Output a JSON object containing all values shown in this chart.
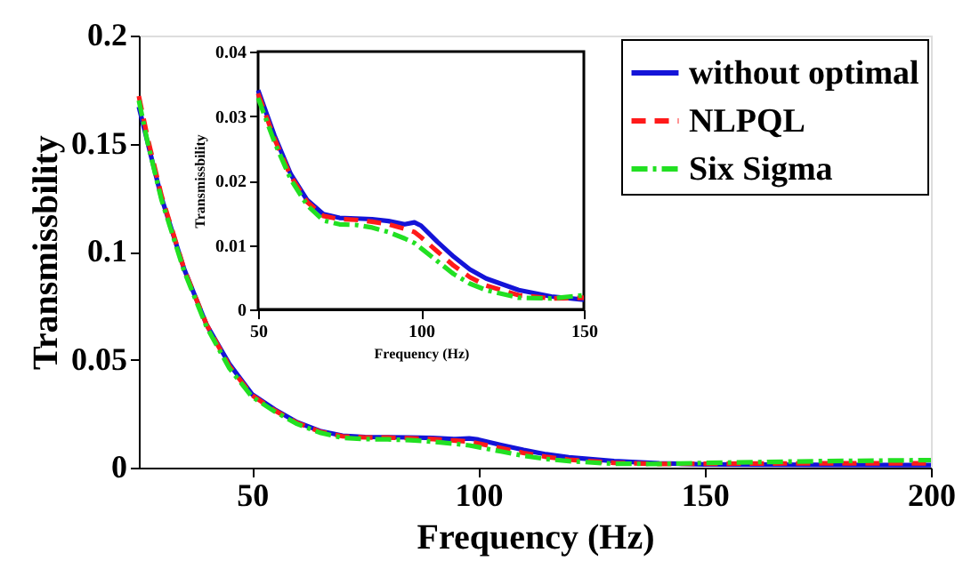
{
  "chart_data": [
    {
      "type": "line",
      "xlabel": "Frequency (Hz)",
      "ylabel": "Transmissbility",
      "xlim": [
        25,
        200
      ],
      "xticks": [
        50,
        100,
        150,
        200
      ],
      "ylim": [
        0,
        0.2
      ],
      "yticks": [
        0,
        0.05,
        0.1,
        0.15,
        0.2
      ],
      "grid": false,
      "legend": "top right",
      "marker": "none",
      "x": [
        25,
        27,
        30,
        35,
        40,
        45,
        50,
        55,
        60,
        65,
        70,
        75,
        80,
        85,
        90,
        95,
        98,
        100,
        105,
        110,
        115,
        120,
        130,
        140,
        150,
        175,
        200
      ],
      "series": [
        {
          "name": "without optimal",
          "color": "#1414d8",
          "line_style": "solid",
          "values": [
            0.167,
            0.15,
            0.125,
            0.092,
            0.066,
            0.048,
            0.034,
            0.027,
            0.021,
            0.017,
            0.0148,
            0.0142,
            0.0141,
            0.014,
            0.0137,
            0.0132,
            0.0135,
            0.013,
            0.0105,
            0.0082,
            0.0062,
            0.0048,
            0.003,
            0.002,
            0.0015,
            0.0013,
            0.0012
          ]
        },
        {
          "name": "NLPQL",
          "color": "#ff1a1a",
          "line_style": "dashed",
          "values": [
            0.172,
            0.152,
            0.126,
            0.092,
            0.066,
            0.047,
            0.0335,
            0.0265,
            0.0207,
            0.0167,
            0.0145,
            0.014,
            0.0139,
            0.0136,
            0.0132,
            0.0125,
            0.012,
            0.0112,
            0.009,
            0.0068,
            0.005,
            0.0037,
            0.0022,
            0.0017,
            0.0018,
            0.002,
            0.002
          ]
        },
        {
          "name": "Six Sigma",
          "color": "#22e022",
          "line_style": "dashdot",
          "values": [
            0.17,
            0.15,
            0.124,
            0.091,
            0.065,
            0.046,
            0.0328,
            0.026,
            0.0202,
            0.0162,
            0.0138,
            0.0132,
            0.0131,
            0.0127,
            0.012,
            0.011,
            0.0103,
            0.0095,
            0.0075,
            0.0055,
            0.004,
            0.003,
            0.0018,
            0.0017,
            0.0022,
            0.003,
            0.0035
          ]
        }
      ]
    },
    {
      "type": "line",
      "xlabel": "Frequency (Hz)",
      "ylabel": "Transmissbility",
      "xlim": [
        50,
        150
      ],
      "xticks": [
        50,
        100,
        150
      ],
      "ylim": [
        0,
        0.04
      ],
      "yticks": [
        0,
        0.01,
        0.02,
        0.03,
        0.04
      ],
      "grid": false,
      "legend": false,
      "marker": "none",
      "x": [
        50,
        55,
        60,
        65,
        70,
        75,
        80,
        85,
        90,
        95,
        98,
        100,
        105,
        110,
        115,
        120,
        130,
        140,
        150
      ],
      "series": [
        {
          "color": "#1414d8",
          "line_style": "solid",
          "values": [
            0.034,
            0.027,
            0.021,
            0.017,
            0.0148,
            0.0142,
            0.0141,
            0.014,
            0.0137,
            0.0132,
            0.0135,
            0.013,
            0.0105,
            0.0082,
            0.0062,
            0.0048,
            0.003,
            0.002,
            0.0015
          ]
        },
        {
          "color": "#ff1a1a",
          "line_style": "dashed",
          "values": [
            0.0335,
            0.0265,
            0.0207,
            0.0167,
            0.0145,
            0.014,
            0.0139,
            0.0136,
            0.0132,
            0.0125,
            0.012,
            0.0112,
            0.009,
            0.0068,
            0.005,
            0.0037,
            0.0022,
            0.0017,
            0.0018
          ]
        },
        {
          "color": "#22e022",
          "line_style": "dashdot",
          "values": [
            0.0328,
            0.026,
            0.0202,
            0.0162,
            0.0138,
            0.0132,
            0.0131,
            0.0127,
            0.012,
            0.011,
            0.0103,
            0.0095,
            0.0075,
            0.0055,
            0.004,
            0.003,
            0.0018,
            0.0017,
            0.0022
          ]
        }
      ]
    }
  ]
}
